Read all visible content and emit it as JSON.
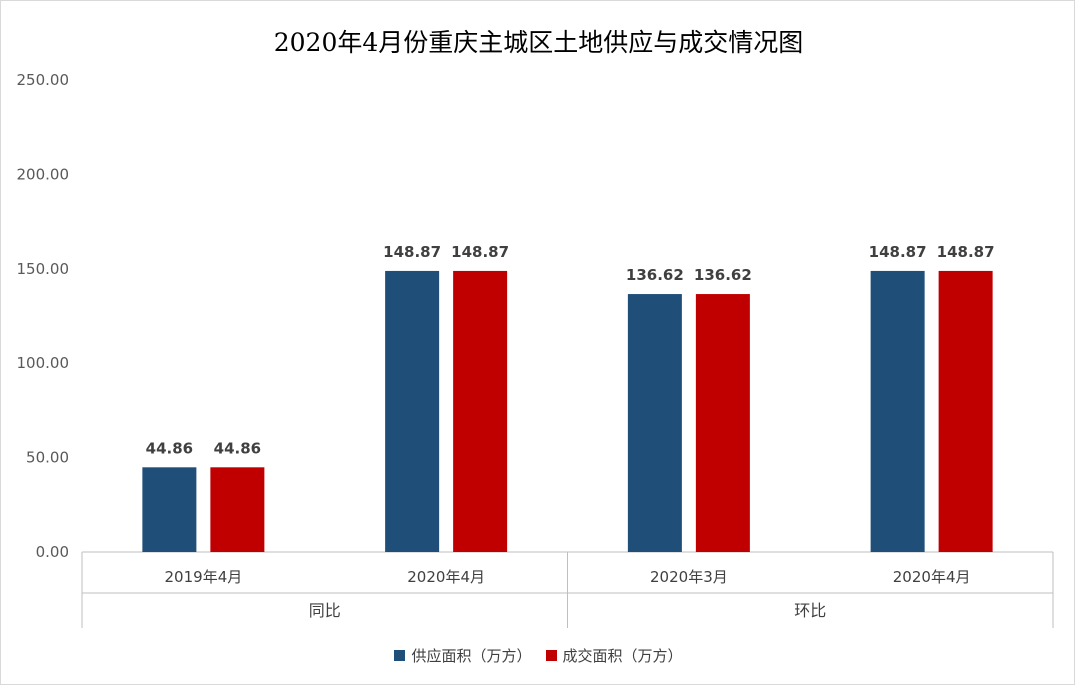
{
  "chart_data": {
    "type": "bar",
    "title": "2020年4月份重庆主城区土地供应与成交情况图",
    "groups": [
      {
        "label": "同比",
        "categories": [
          "2019年4月",
          "2020年4月"
        ]
      },
      {
        "label": "环比",
        "categories": [
          "2020年3月",
          "2020年4月"
        ]
      }
    ],
    "categories": [
      "2019年4月",
      "2020年4月",
      "2020年3月",
      "2020年4月"
    ],
    "series": [
      {
        "name": "供应面积（万方）",
        "color": "#1f4e79",
        "values": [
          44.86,
          148.87,
          136.62,
          148.87
        ],
        "labels": [
          "44.86",
          "148.87",
          "136.62",
          "148.87"
        ]
      },
      {
        "name": "成交面积（万方）",
        "color": "#c00000",
        "values": [
          44.86,
          148.87,
          136.62,
          148.87
        ],
        "labels": [
          "44.86",
          "148.87",
          "136.62",
          "148.87"
        ]
      }
    ],
    "y_ticks": [
      "0.00",
      "50.00",
      "100.00",
      "150.00",
      "200.00",
      "250.00"
    ],
    "ylim": [
      0,
      250
    ],
    "grid": false,
    "legend_position": "bottom"
  }
}
